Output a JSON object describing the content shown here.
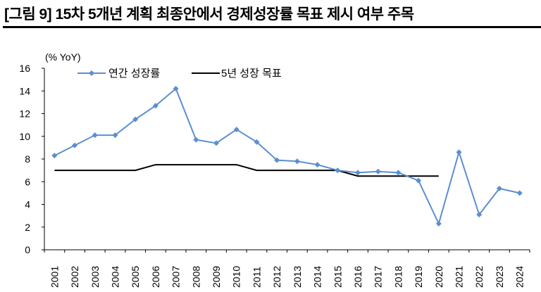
{
  "title": "[그림 9] 15차 5개년 계획 최종안에서 경제성장률 목표 제시 여부 주목",
  "chart_data": {
    "type": "line",
    "ylabel": "(% YoY)",
    "ylim": [
      0,
      16
    ],
    "yticks": [
      0,
      2,
      4,
      6,
      8,
      10,
      12,
      14,
      16
    ],
    "grid": false,
    "legend_placement": "top-left",
    "categories": [
      "2001",
      "2002",
      "2003",
      "2004",
      "2005",
      "2006",
      "2007",
      "2008",
      "2009",
      "2010",
      "2011",
      "2012",
      "2013",
      "2014",
      "2015",
      "2016",
      "2017",
      "2018",
      "2019",
      "2020",
      "2021",
      "2022",
      "2023",
      "2024"
    ],
    "series": [
      {
        "name": "연간 성장률",
        "color": "#5B8FD0",
        "marker": "diamond",
        "values": [
          8.3,
          9.2,
          10.1,
          10.1,
          11.5,
          12.7,
          14.2,
          9.7,
          9.4,
          10.6,
          9.5,
          7.9,
          7.8,
          7.5,
          7.0,
          6.8,
          6.9,
          6.8,
          6.1,
          2.3,
          8.6,
          3.1,
          5.4,
          5.0
        ]
      },
      {
        "name": "5년 성장 목표",
        "color": "#000000",
        "marker": "none",
        "values": [
          7.0,
          7.0,
          7.0,
          7.0,
          7.0,
          7.5,
          7.5,
          7.5,
          7.5,
          7.5,
          7.0,
          7.0,
          7.0,
          7.0,
          7.0,
          6.5,
          6.5,
          6.5,
          6.5,
          6.5,
          null,
          null,
          null,
          null
        ]
      }
    ]
  }
}
